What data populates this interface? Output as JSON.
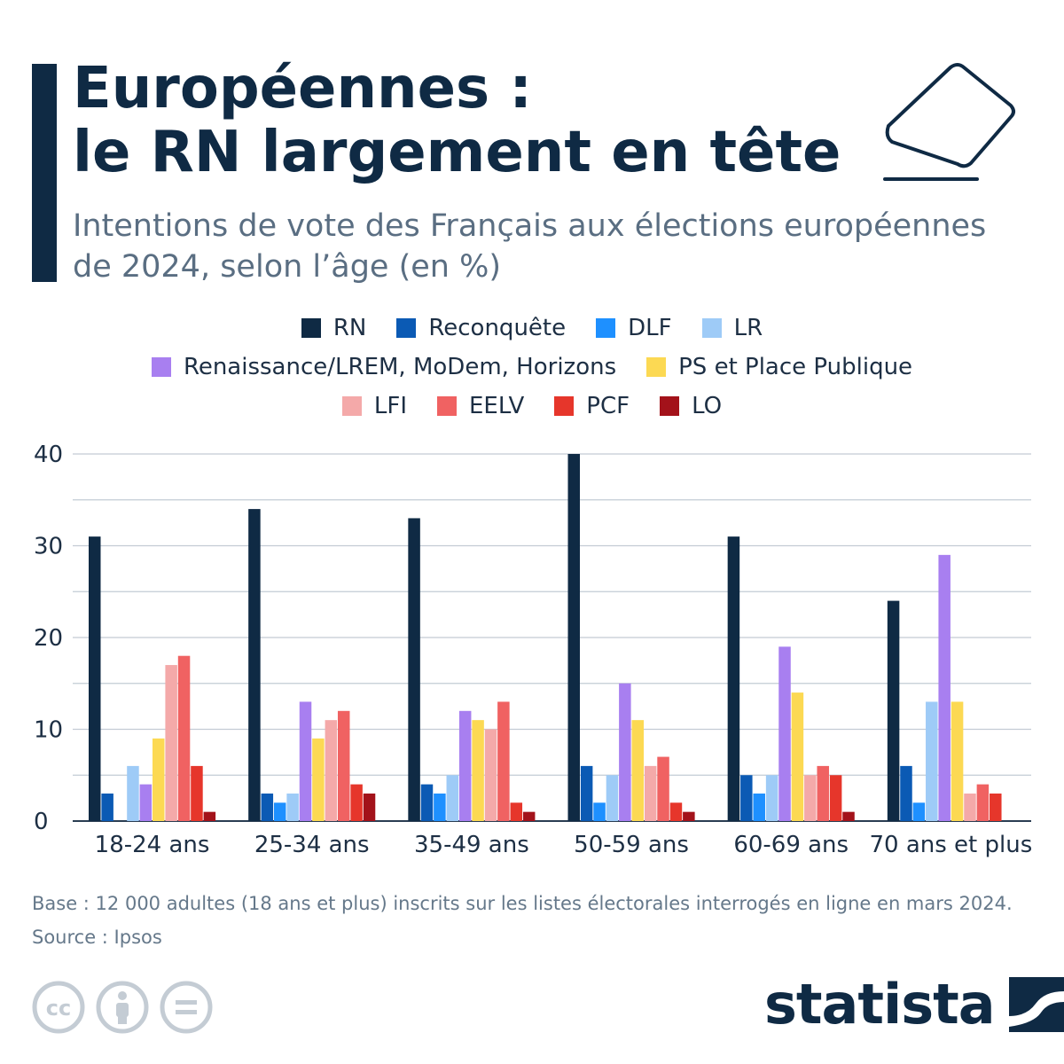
{
  "header": {
    "title_line1": "Européennes :",
    "title_line2": "le RN largement en tête",
    "subtitle_line1": "Intentions de vote des Français aux élections européennes",
    "subtitle_line2": "de 2024, selon l’âge (en %)",
    "accent_color": "#0f2a44",
    "icon": "ballot-box-icon"
  },
  "chart_data": {
    "type": "bar",
    "categories": [
      "18-24 ans",
      "25-34 ans",
      "35-49 ans",
      "50-59 ans",
      "60-69 ans",
      "70 ans et plus"
    ],
    "series": [
      {
        "name": "RN",
        "color": "#0f2a44",
        "values": [
          31,
          34,
          33,
          40,
          31,
          24
        ]
      },
      {
        "name": "Reconquête",
        "color": "#0b5ab4",
        "values": [
          3,
          3,
          4,
          6,
          5,
          6
        ]
      },
      {
        "name": "DLF",
        "color": "#1e90ff",
        "values": [
          0,
          2,
          3,
          2,
          3,
          2
        ]
      },
      {
        "name": "LR",
        "color": "#9ecbf7",
        "values": [
          6,
          3,
          5,
          5,
          5,
          13
        ]
      },
      {
        "name": "Renaissance/LREM, MoDem, Horizons",
        "color": "#a87ff0",
        "values": [
          4,
          13,
          12,
          15,
          19,
          29
        ]
      },
      {
        "name": "PS et Place Publique",
        "color": "#fcd953",
        "values": [
          9,
          9,
          11,
          11,
          14,
          13
        ]
      },
      {
        "name": "LFI",
        "color": "#f4a9a9",
        "values": [
          17,
          11,
          10,
          6,
          5,
          3
        ]
      },
      {
        "name": "EELV",
        "color": "#f06262",
        "values": [
          18,
          12,
          13,
          7,
          6,
          4
        ]
      },
      {
        "name": "PCF",
        "color": "#e6362b",
        "values": [
          6,
          4,
          2,
          2,
          5,
          3
        ]
      },
      {
        "name": "LO",
        "color": "#a3121a",
        "values": [
          1,
          3,
          1,
          1,
          1,
          0
        ]
      }
    ],
    "ylim": [
      0,
      40
    ],
    "yticks": [
      0,
      10,
      20,
      30,
      40
    ],
    "grid": true,
    "legend_position": "top"
  },
  "footer": {
    "base_note": "Base : 12 000 adultes (18 ans et plus) inscrits sur les listes électorales interrogés en ligne en mars 2024.",
    "source": "Source : Ipsos",
    "license_icons": [
      "cc-icon",
      "attribution-icon",
      "no-derivatives-icon"
    ],
    "brand": "statista",
    "brand_icon": "statista-logo-icon"
  }
}
